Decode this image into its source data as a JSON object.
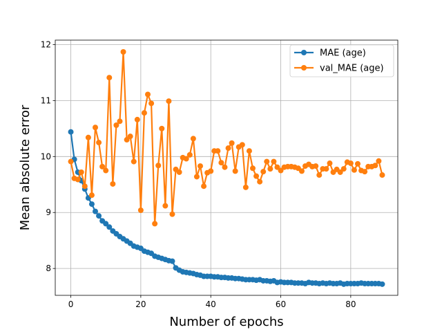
{
  "chart_data": {
    "type": "line",
    "title": "",
    "xlabel": "Number of epochs",
    "ylabel": "Mean absolute error",
    "xlim": [
      -4.45,
      93.45
    ],
    "ylim": [
      7.52,
      12.08
    ],
    "xticks": [
      0,
      20,
      40,
      60,
      80
    ],
    "yticks": [
      8,
      9,
      10,
      11,
      12
    ],
    "grid": true,
    "legend_position": "top-right",
    "series": [
      {
        "name": "MAE (age)",
        "color": "#1f77b4",
        "marker": "circle",
        "x": [
          0,
          1,
          2,
          3,
          4,
          5,
          6,
          7,
          8,
          9,
          10,
          11,
          12,
          13,
          14,
          15,
          16,
          17,
          18,
          19,
          20,
          21,
          22,
          23,
          24,
          25,
          26,
          27,
          28,
          29,
          30,
          31,
          32,
          33,
          34,
          35,
          36,
          37,
          38,
          39,
          40,
          41,
          42,
          43,
          44,
          45,
          46,
          47,
          48,
          49,
          50,
          51,
          52,
          53,
          54,
          55,
          56,
          57,
          58,
          59,
          60,
          61,
          62,
          63,
          64,
          65,
          66,
          67,
          68,
          69,
          70,
          71,
          72,
          73,
          74,
          75,
          76,
          77,
          78,
          79,
          80,
          81,
          82,
          83,
          84,
          85,
          86,
          87,
          88,
          89
        ],
        "values": [
          10.44,
          9.95,
          9.72,
          9.57,
          9.42,
          9.26,
          9.15,
          9.02,
          8.94,
          8.85,
          8.8,
          8.74,
          8.67,
          8.62,
          8.57,
          8.53,
          8.49,
          8.45,
          8.4,
          8.38,
          8.36,
          8.31,
          8.29,
          8.27,
          8.22,
          8.2,
          8.18,
          8.16,
          8.14,
          8.13,
          8.01,
          7.97,
          7.94,
          7.93,
          7.92,
          7.91,
          7.89,
          7.88,
          7.86,
          7.86,
          7.86,
          7.85,
          7.85,
          7.84,
          7.84,
          7.83,
          7.83,
          7.82,
          7.82,
          7.81,
          7.8,
          7.8,
          7.8,
          7.79,
          7.8,
          7.78,
          7.78,
          7.77,
          7.78,
          7.75,
          7.76,
          7.75,
          7.75,
          7.75,
          7.74,
          7.74,
          7.74,
          7.73,
          7.75,
          7.74,
          7.74,
          7.73,
          7.74,
          7.73,
          7.74,
          7.73,
          7.73,
          7.74,
          7.72,
          7.73,
          7.73,
          7.73,
          7.73,
          7.74,
          7.73,
          7.73,
          7.73,
          7.73,
          7.73,
          7.72
        ]
      },
      {
        "name": "val_MAE (age)",
        "color": "#ff7f0e",
        "marker": "circle",
        "x": [
          0,
          1,
          2,
          3,
          4,
          5,
          6,
          7,
          8,
          9,
          10,
          11,
          12,
          13,
          14,
          15,
          16,
          17,
          18,
          19,
          20,
          21,
          22,
          23,
          24,
          25,
          26,
          27,
          28,
          29,
          30,
          31,
          32,
          33,
          34,
          35,
          36,
          37,
          38,
          39,
          40,
          41,
          42,
          43,
          44,
          45,
          46,
          47,
          48,
          49,
          50,
          51,
          52,
          53,
          54,
          55,
          56,
          57,
          58,
          59,
          60,
          61,
          62,
          63,
          64,
          65,
          66,
          67,
          68,
          69,
          70,
          71,
          72,
          73,
          74,
          75,
          76,
          77,
          78,
          79,
          80,
          81,
          82,
          83,
          84,
          85,
          86,
          87,
          88,
          89
        ],
        "values": [
          9.91,
          9.61,
          9.59,
          9.72,
          9.47,
          10.34,
          9.31,
          10.52,
          10.25,
          9.82,
          9.75,
          11.41,
          9.51,
          10.56,
          10.63,
          11.87,
          10.3,
          10.36,
          9.91,
          10.66,
          9.04,
          10.78,
          11.11,
          10.95,
          8.8,
          9.84,
          10.5,
          9.12,
          10.99,
          8.97,
          9.77,
          9.72,
          9.98,
          9.96,
          10.03,
          10.32,
          9.64,
          9.83,
          9.47,
          9.71,
          9.74,
          10.1,
          10.1,
          9.89,
          9.81,
          10.15,
          10.24,
          9.74,
          10.17,
          10.21,
          9.45,
          10.1,
          9.79,
          9.65,
          9.55,
          9.73,
          9.91,
          9.78,
          9.91,
          9.81,
          9.75,
          9.81,
          9.82,
          9.82,
          9.81,
          9.79,
          9.74,
          9.83,
          9.86,
          9.82,
          9.83,
          9.67,
          9.78,
          9.78,
          9.88,
          9.72,
          9.77,
          9.72,
          9.78,
          9.9,
          9.88,
          9.76,
          9.87,
          9.75,
          9.73,
          9.82,
          9.82,
          9.84,
          9.92,
          9.67
        ]
      }
    ]
  }
}
